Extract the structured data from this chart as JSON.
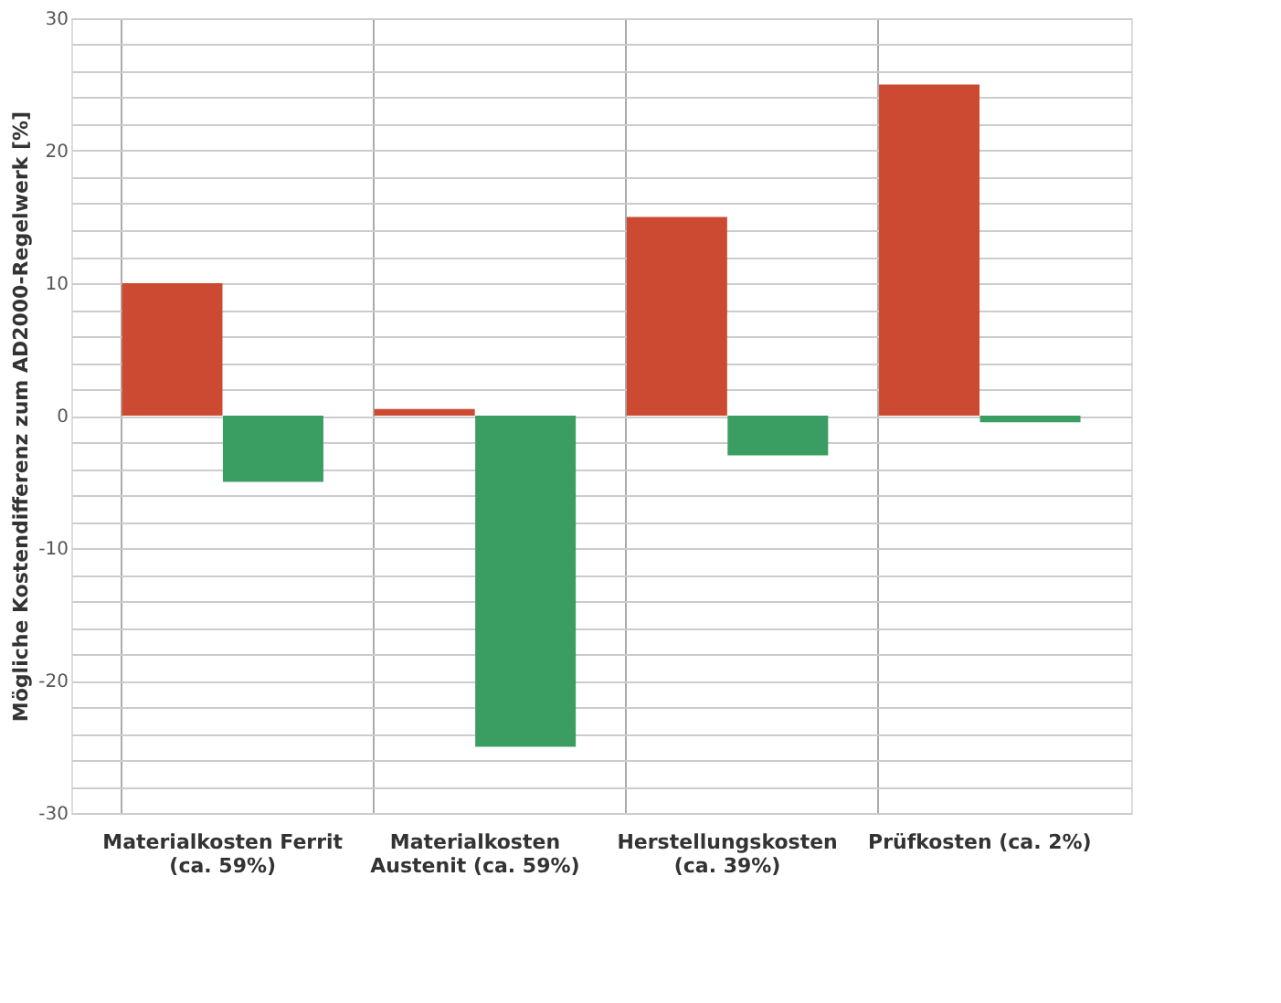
{
  "chart_data": {
    "type": "bar",
    "ylabel": "Mögliche Kostendifferenz zum AD2000-Regelwerk [%]",
    "categories": [
      "Materialkosten Ferrit (ca. 59%)",
      "Materialkosten Austenit (ca. 59%)",
      "Herstellungskosten (ca. 39%)",
      "Prüfkosten (ca. 2%)"
    ],
    "series": [
      {
        "color": "#cc4a32",
        "values": [
          10,
          0.5,
          15,
          25
        ]
      },
      {
        "color": "#3a9e62",
        "values": [
          -5,
          -25,
          -3,
          -0.5
        ]
      }
    ],
    "ylim": [
      -30,
      30
    ],
    "yticks": [
      -30,
      {
        "value": -28,
        "label": null
      },
      {
        "value": -26,
        "label": null
      },
      {
        "value": -24,
        "label": null
      },
      {
        "value": -22,
        "label": null
      },
      -20,
      {
        "value": -18,
        "label": null
      },
      {
        "value": -16,
        "label": null
      },
      {
        "value": -14,
        "label": null
      },
      {
        "value": -12,
        "label": null
      },
      -10,
      {
        "value": -8,
        "label": null
      },
      {
        "value": -6,
        "label": null
      },
      {
        "value": -4,
        "label": null
      },
      {
        "value": -2,
        "label": null
      },
      0,
      {
        "value": 2,
        "label": null
      },
      {
        "value": 4,
        "label": null
      },
      {
        "value": 6,
        "label": null
      },
      {
        "value": 8,
        "label": null
      },
      10,
      {
        "value": 12,
        "label": null
      },
      {
        "value": 14,
        "label": null
      },
      {
        "value": 16,
        "label": null
      },
      {
        "value": 18,
        "label": null
      },
      20,
      {
        "value": 22,
        "label": null
      },
      {
        "value": 24,
        "label": null
      },
      {
        "value": 26,
        "label": null
      },
      {
        "value": 28,
        "label": null
      },
      30
    ],
    "grid": true,
    "legend": false
  }
}
